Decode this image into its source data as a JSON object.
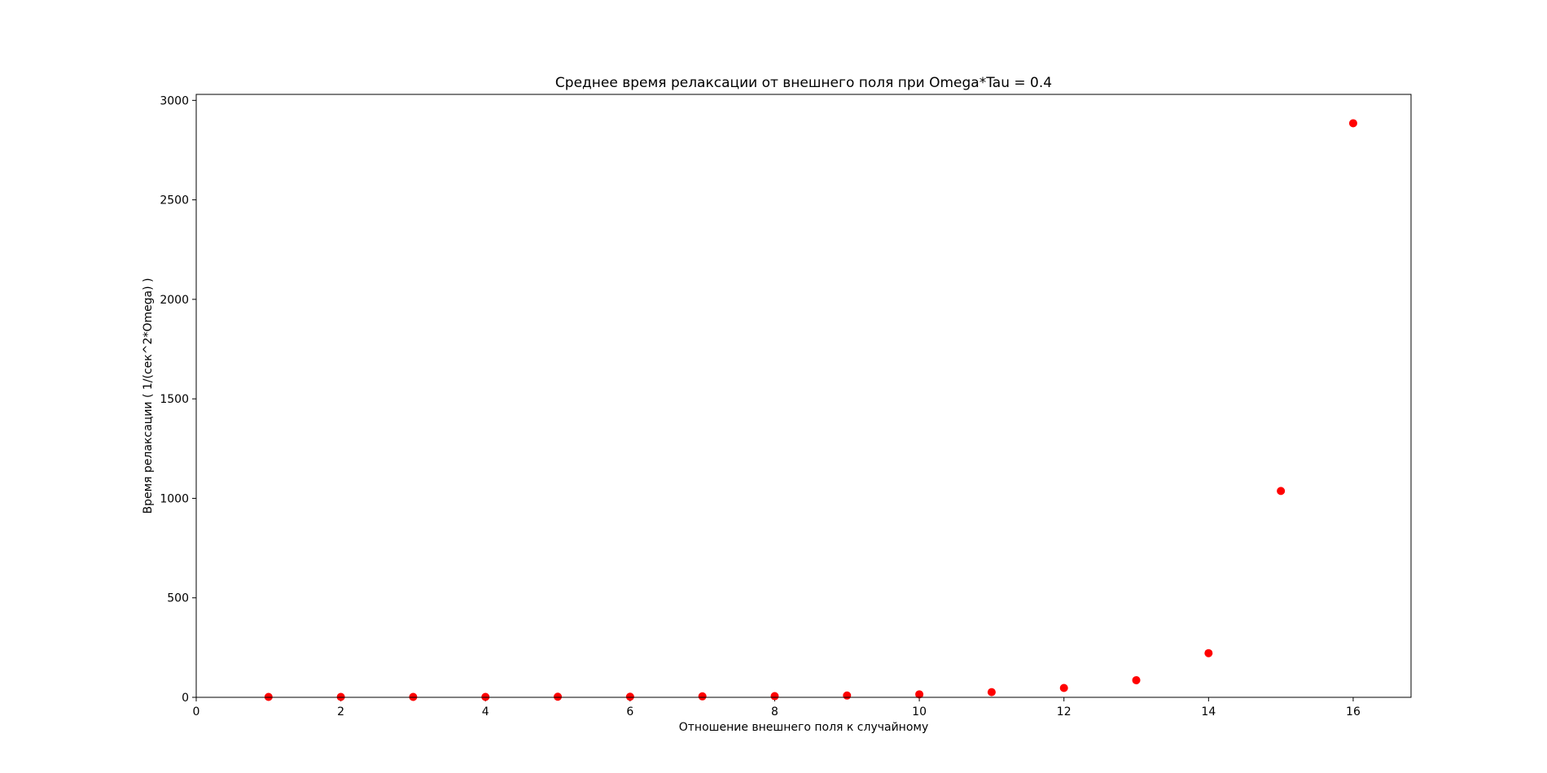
{
  "chart_data": {
    "type": "scatter",
    "title": "Среднее время релаксации от внешнего поля при Omega*Tau = 0.4",
    "xlabel": "Отношение внешнего поля к случайному",
    "ylabel": "Время релаксации ( 1/(сек^2*Omega) )",
    "xlim": [
      0,
      16.8
    ],
    "ylim": [
      0,
      3030
    ],
    "x_ticks": [
      0,
      2,
      4,
      6,
      8,
      10,
      12,
      14,
      16
    ],
    "y_ticks": [
      0,
      500,
      1000,
      1500,
      2000,
      2500,
      3000
    ],
    "grid": false,
    "legend": "none",
    "marker_color": "#ff0000",
    "series": [
      {
        "x": [
          1,
          2,
          3,
          4,
          5,
          6,
          7,
          8,
          9,
          10,
          11,
          12,
          13,
          14,
          15,
          16
        ],
        "y": [
          2,
          2,
          2,
          2,
          3,
          3,
          5,
          6,
          9,
          15,
          26,
          47,
          86,
          222,
          1037,
          2885
        ]
      }
    ]
  }
}
